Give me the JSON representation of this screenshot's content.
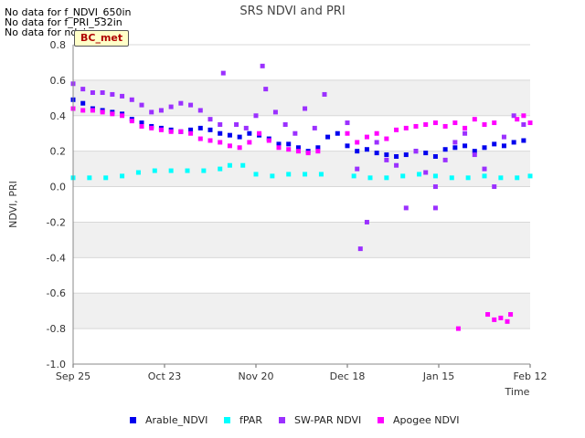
{
  "notices": [
    "No data for f_NDVI_650in",
    "No data for f_PRI_532in",
    "No data for ndvi"
  ],
  "site_badge": "BC_met",
  "colors": {
    "Arable_NDVI": "#0000ee",
    "fPAR": "#00ffff",
    "SW-PAR NDVI": "#9b30ff",
    "Apogee NDVI": "#ff00ff",
    "band": "#f0f0f0",
    "grid": "#d8d8d8"
  },
  "chart_data": {
    "type": "scatter",
    "title": "SRS NDVI and PRI",
    "xlabel": "Time",
    "ylabel": "NDVI, PRI",
    "ylim": [
      -1.0,
      0.8
    ],
    "xlim": [
      "2023-09-25",
      "2024-02-12"
    ],
    "x_ticks": [
      "Sep 25",
      "Oct 23",
      "Nov 20",
      "Dec 18",
      "Jan 15",
      "Feb 12"
    ],
    "y_ticks": [
      "0.8",
      "0.6",
      "0.4",
      "0.2",
      "0.0",
      "-0.2",
      "-0.4",
      "-0.6",
      "-0.8",
      "-1.0"
    ],
    "legend_position": "bottom",
    "series": [
      {
        "name": "Arable_NDVI",
        "points": [
          [
            "2023-09-25",
            0.49
          ],
          [
            "2023-09-28",
            0.47
          ],
          [
            "2023-10-01",
            0.44
          ],
          [
            "2023-10-04",
            0.43
          ],
          [
            "2023-10-07",
            0.42
          ],
          [
            "2023-10-10",
            0.41
          ],
          [
            "2023-10-13",
            0.38
          ],
          [
            "2023-10-16",
            0.36
          ],
          [
            "2023-10-19",
            0.34
          ],
          [
            "2023-10-22",
            0.33
          ],
          [
            "2023-10-25",
            0.32
          ],
          [
            "2023-10-28",
            0.31
          ],
          [
            "2023-10-31",
            0.32
          ],
          [
            "2023-11-03",
            0.33
          ],
          [
            "2023-11-06",
            0.32
          ],
          [
            "2023-11-09",
            0.3
          ],
          [
            "2023-11-12",
            0.29
          ],
          [
            "2023-11-15",
            0.28
          ],
          [
            "2023-11-18",
            0.3
          ],
          [
            "2023-11-21",
            0.29
          ],
          [
            "2023-11-24",
            0.27
          ],
          [
            "2023-11-27",
            0.24
          ],
          [
            "2023-11-30",
            0.24
          ],
          [
            "2023-12-03",
            0.22
          ],
          [
            "2023-12-06",
            0.2
          ],
          [
            "2023-12-09",
            0.22
          ],
          [
            "2023-12-12",
            0.28
          ],
          [
            "2023-12-15",
            0.3
          ],
          [
            "2023-12-18",
            0.23
          ],
          [
            "2023-12-21",
            0.2
          ],
          [
            "2023-12-24",
            0.21
          ],
          [
            "2023-12-27",
            0.19
          ],
          [
            "2023-12-30",
            0.18
          ],
          [
            "2024-01-02",
            0.17
          ],
          [
            "2024-01-05",
            0.18
          ],
          [
            "2024-01-08",
            0.2
          ],
          [
            "2024-01-11",
            0.19
          ],
          [
            "2024-01-14",
            0.17
          ],
          [
            "2024-01-17",
            0.21
          ],
          [
            "2024-01-20",
            0.22
          ],
          [
            "2024-01-23",
            0.23
          ],
          [
            "2024-01-26",
            0.2
          ],
          [
            "2024-01-29",
            0.22
          ],
          [
            "2024-02-01",
            0.24
          ],
          [
            "2024-02-04",
            0.23
          ],
          [
            "2024-02-07",
            0.25
          ],
          [
            "2024-02-10",
            0.26
          ]
        ]
      },
      {
        "name": "fPAR",
        "points": [
          [
            "2023-09-25",
            0.05
          ],
          [
            "2023-09-30",
            0.05
          ],
          [
            "2023-10-05",
            0.05
          ],
          [
            "2023-10-10",
            0.06
          ],
          [
            "2023-10-15",
            0.08
          ],
          [
            "2023-10-20",
            0.09
          ],
          [
            "2023-10-25",
            0.09
          ],
          [
            "2023-10-30",
            0.09
          ],
          [
            "2023-11-04",
            0.09
          ],
          [
            "2023-11-09",
            0.1
          ],
          [
            "2023-11-12",
            0.12
          ],
          [
            "2023-11-16",
            0.12
          ],
          [
            "2023-11-20",
            0.07
          ],
          [
            "2023-11-25",
            0.06
          ],
          [
            "2023-11-30",
            0.07
          ],
          [
            "2023-12-05",
            0.07
          ],
          [
            "2023-12-10",
            0.07
          ],
          [
            "2023-12-20",
            0.06
          ],
          [
            "2023-12-25",
            0.05
          ],
          [
            "2023-12-30",
            0.05
          ],
          [
            "2024-01-04",
            0.06
          ],
          [
            "2024-01-09",
            0.07
          ],
          [
            "2024-01-14",
            0.06
          ],
          [
            "2024-01-19",
            0.05
          ],
          [
            "2024-01-24",
            0.05
          ],
          [
            "2024-01-29",
            0.06
          ],
          [
            "2024-02-03",
            0.05
          ],
          [
            "2024-02-08",
            0.05
          ],
          [
            "2024-02-12",
            0.06
          ]
        ]
      },
      {
        "name": "SW-PAR NDVI",
        "points": [
          [
            "2023-09-25",
            0.58
          ],
          [
            "2023-09-28",
            0.55
          ],
          [
            "2023-10-01",
            0.53
          ],
          [
            "2023-10-04",
            0.53
          ],
          [
            "2023-10-07",
            0.52
          ],
          [
            "2023-10-10",
            0.51
          ],
          [
            "2023-10-13",
            0.49
          ],
          [
            "2023-10-16",
            0.46
          ],
          [
            "2023-10-19",
            0.42
          ],
          [
            "2023-10-22",
            0.43
          ],
          [
            "2023-10-25",
            0.45
          ],
          [
            "2023-10-28",
            0.47
          ],
          [
            "2023-10-31",
            0.46
          ],
          [
            "2023-11-03",
            0.43
          ],
          [
            "2023-11-06",
            0.38
          ],
          [
            "2023-11-09",
            0.35
          ],
          [
            "2023-11-10",
            0.64
          ],
          [
            "2023-11-14",
            0.35
          ],
          [
            "2023-11-17",
            0.33
          ],
          [
            "2023-11-20",
            0.4
          ],
          [
            "2023-11-22",
            0.68
          ],
          [
            "2023-11-23",
            0.55
          ],
          [
            "2023-11-26",
            0.42
          ],
          [
            "2023-11-29",
            0.35
          ],
          [
            "2023-12-02",
            0.3
          ],
          [
            "2023-12-05",
            0.44
          ],
          [
            "2023-12-08",
            0.33
          ],
          [
            "2023-12-11",
            0.52
          ],
          [
            "2023-12-18",
            0.36
          ],
          [
            "2023-12-21",
            0.1
          ],
          [
            "2023-12-22",
            -0.35
          ],
          [
            "2023-12-24",
            -0.2
          ],
          [
            "2023-12-27",
            0.25
          ],
          [
            "2023-12-30",
            0.15
          ],
          [
            "2024-01-02",
            0.12
          ],
          [
            "2024-01-05",
            -0.12
          ],
          [
            "2024-01-08",
            0.2
          ],
          [
            "2024-01-11",
            0.08
          ],
          [
            "2024-01-14",
            0.0
          ],
          [
            "2024-01-14",
            -0.12
          ],
          [
            "2024-01-17",
            0.15
          ],
          [
            "2024-01-20",
            0.25
          ],
          [
            "2024-01-23",
            0.3
          ],
          [
            "2024-01-26",
            0.18
          ],
          [
            "2024-01-29",
            0.1
          ],
          [
            "2024-02-01",
            0.0
          ],
          [
            "2024-02-04",
            0.28
          ],
          [
            "2024-02-07",
            0.4
          ],
          [
            "2024-02-10",
            0.35
          ]
        ]
      },
      {
        "name": "Apogee NDVI",
        "points": [
          [
            "2023-09-25",
            0.44
          ],
          [
            "2023-09-28",
            0.43
          ],
          [
            "2023-10-01",
            0.43
          ],
          [
            "2023-10-04",
            0.42
          ],
          [
            "2023-10-07",
            0.41
          ],
          [
            "2023-10-10",
            0.4
          ],
          [
            "2023-10-13",
            0.37
          ],
          [
            "2023-10-16",
            0.34
          ],
          [
            "2023-10-19",
            0.33
          ],
          [
            "2023-10-22",
            0.32
          ],
          [
            "2023-10-25",
            0.31
          ],
          [
            "2023-10-28",
            0.31
          ],
          [
            "2023-10-31",
            0.3
          ],
          [
            "2023-11-03",
            0.27
          ],
          [
            "2023-11-06",
            0.26
          ],
          [
            "2023-11-09",
            0.25
          ],
          [
            "2023-11-12",
            0.23
          ],
          [
            "2023-11-15",
            0.22
          ],
          [
            "2023-11-18",
            0.25
          ],
          [
            "2023-11-21",
            0.3
          ],
          [
            "2023-11-24",
            0.26
          ],
          [
            "2023-11-27",
            0.22
          ],
          [
            "2023-11-30",
            0.21
          ],
          [
            "2023-12-03",
            0.2
          ],
          [
            "2023-12-06",
            0.19
          ],
          [
            "2023-12-09",
            0.2
          ],
          [
            "2023-12-18",
            0.3
          ],
          [
            "2023-12-21",
            0.25
          ],
          [
            "2023-12-24",
            0.28
          ],
          [
            "2023-12-27",
            0.3
          ],
          [
            "2023-12-30",
            0.27
          ],
          [
            "2024-01-02",
            0.32
          ],
          [
            "2024-01-05",
            0.33
          ],
          [
            "2024-01-08",
            0.34
          ],
          [
            "2024-01-11",
            0.35
          ],
          [
            "2024-01-14",
            0.36
          ],
          [
            "2024-01-17",
            0.34
          ],
          [
            "2024-01-20",
            0.36
          ],
          [
            "2024-01-23",
            0.33
          ],
          [
            "2024-01-26",
            0.38
          ],
          [
            "2024-01-29",
            0.35
          ],
          [
            "2024-02-01",
            0.36
          ],
          [
            "2024-01-21",
            -0.8
          ],
          [
            "2024-01-30",
            -0.72
          ],
          [
            "2024-02-01",
            -0.75
          ],
          [
            "2024-02-03",
            -0.74
          ],
          [
            "2024-02-05",
            -0.76
          ],
          [
            "2024-02-06",
            -0.72
          ],
          [
            "2024-02-08",
            0.38
          ],
          [
            "2024-02-10",
            0.4
          ],
          [
            "2024-02-12",
            0.36
          ]
        ]
      }
    ]
  }
}
